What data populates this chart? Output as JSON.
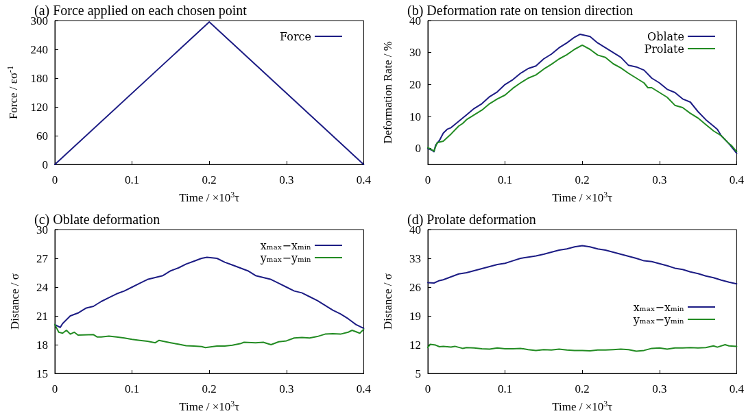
{
  "chart_data": [
    {
      "type": "line",
      "title": "(a) Force applied on each chosen point",
      "xlabel": "Time / ×10$^{3}$τ",
      "ylabel": "Force / εσ$^{-1}$",
      "xlim": [
        0,
        0.4
      ],
      "xticks": [
        0,
        0.1,
        0.2,
        0.3,
        0.4
      ],
      "ylim": [
        0,
        300
      ],
      "yticks": [
        0,
        60,
        120,
        180,
        240,
        300
      ],
      "grid": false,
      "legend": "top right",
      "marker": "none",
      "line_style": "solid",
      "series": [
        {
          "name": "Force",
          "color": "#1c1c84",
          "x": [
            0,
            0.2,
            0.4
          ],
          "values": [
            0,
            297,
            0
          ]
        }
      ]
    },
    {
      "type": "line",
      "title": "(b) Deformation rate on tension direction",
      "xlabel": "Time / ×10$^{3}$τ",
      "ylabel": "Deformation Rate / %",
      "xlim": [
        0,
        0.4
      ],
      "xticks": [
        0,
        0.1,
        0.2,
        0.3,
        0.4
      ],
      "ylim": [
        -5,
        40
      ],
      "yticks": [
        0,
        10,
        20,
        30,
        40
      ],
      "grid": false,
      "legend": "top right",
      "marker": "none",
      "line_style": "solid",
      "series": [
        {
          "name": "Oblate",
          "color": "#1c1c84",
          "x": [
            0,
            0.005,
            0.008,
            0.01,
            0.015,
            0.02,
            0.025,
            0.03,
            0.04,
            0.05,
            0.06,
            0.07,
            0.08,
            0.09,
            0.1,
            0.11,
            0.12,
            0.13,
            0.14,
            0.15,
            0.16,
            0.17,
            0.18,
            0.19,
            0.197,
            0.21,
            0.22,
            0.23,
            0.24,
            0.25,
            0.26,
            0.27,
            0.28,
            0.29,
            0.3,
            0.31,
            0.32,
            0.33,
            0.34,
            0.35,
            0.36,
            0.37,
            0.375,
            0.38,
            0.39,
            0.4
          ],
          "values": [
            0,
            -0.5,
            -1,
            1,
            2.5,
            4.8,
            6,
            6.5,
            8.5,
            10.5,
            12.5,
            14,
            16.2,
            17.7,
            20,
            21.5,
            23.5,
            25,
            25.8,
            28,
            29.5,
            31.5,
            33,
            34.8,
            35.7,
            35,
            33,
            31.5,
            30,
            28.5,
            26,
            25.5,
            24.5,
            22,
            20.5,
            18.5,
            17.5,
            15.5,
            14.5,
            11.5,
            9,
            7,
            6,
            4,
            1.5,
            -1.5
          ]
        },
        {
          "name": "Prolate",
          "color": "#228b22",
          "x": [
            0,
            0.008,
            0.012,
            0.02,
            0.03,
            0.04,
            0.045,
            0.05,
            0.06,
            0.07,
            0.08,
            0.09,
            0.1,
            0.11,
            0.12,
            0.13,
            0.14,
            0.15,
            0.16,
            0.17,
            0.18,
            0.19,
            0.2,
            0.21,
            0.22,
            0.23,
            0.24,
            0.25,
            0.26,
            0.27,
            0.28,
            0.285,
            0.29,
            0.3,
            0.31,
            0.32,
            0.33,
            0.34,
            0.35,
            0.36,
            0.37,
            0.38,
            0.39,
            0.393,
            0.4
          ],
          "values": [
            0.3,
            -0.8,
            1.8,
            2.3,
            4.5,
            7,
            7.8,
            9,
            10.5,
            12,
            14,
            15.5,
            16.7,
            18.8,
            20.5,
            22,
            23,
            24.8,
            26.3,
            28,
            29.3,
            31,
            32.3,
            31,
            29.2,
            28.5,
            26.5,
            25.2,
            23.5,
            22,
            20.5,
            19,
            19,
            17.5,
            16,
            13.5,
            12.8,
            11,
            9.5,
            7.5,
            5.5,
            4,
            1.5,
            1,
            -1
          ]
        }
      ]
    },
    {
      "type": "line",
      "title": "(c) Oblate deformation",
      "xlabel": "Time / ×10$^{3}$τ",
      "ylabel": "Distance / σ",
      "xlim": [
        0,
        0.4
      ],
      "xticks": [
        0,
        0.1,
        0.2,
        0.3,
        0.4
      ],
      "ylim": [
        15,
        30
      ],
      "yticks": [
        15,
        18,
        21,
        24,
        27,
        30
      ],
      "grid": false,
      "legend": "top right",
      "marker": "none",
      "line_style": "solid",
      "series": [
        {
          "name": "xₘₐₓ−xₘᵢₙ",
          "color": "#1c1c84",
          "x": [
            0,
            0.007,
            0.01,
            0.02,
            0.03,
            0.04,
            0.05,
            0.06,
            0.07,
            0.08,
            0.09,
            0.1,
            0.11,
            0.12,
            0.13,
            0.14,
            0.15,
            0.16,
            0.17,
            0.18,
            0.19,
            0.197,
            0.21,
            0.22,
            0.23,
            0.24,
            0.25,
            0.26,
            0.27,
            0.28,
            0.29,
            0.3,
            0.31,
            0.32,
            0.33,
            0.34,
            0.35,
            0.36,
            0.37,
            0.38,
            0.39,
            0.4
          ],
          "values": [
            20.1,
            19.8,
            20.2,
            21,
            21.3,
            21.8,
            22,
            22.5,
            22.9,
            23.3,
            23.6,
            24,
            24.4,
            24.8,
            25,
            25.2,
            25.7,
            26,
            26.4,
            26.7,
            27,
            27.1,
            27,
            26.6,
            26.3,
            26,
            25.7,
            25.2,
            25,
            24.8,
            24.4,
            24,
            23.6,
            23.4,
            23,
            22.6,
            22.1,
            21.6,
            21.2,
            20.7,
            20.1,
            19.7
          ]
        },
        {
          "name": "yₘₐₓ−yₘᵢₙ",
          "color": "#228b22",
          "x": [
            0,
            0.005,
            0.01,
            0.015,
            0.02,
            0.025,
            0.03,
            0.05,
            0.055,
            0.06,
            0.07,
            0.08,
            0.09,
            0.1,
            0.11,
            0.12,
            0.13,
            0.135,
            0.15,
            0.16,
            0.17,
            0.18,
            0.19,
            0.195,
            0.21,
            0.22,
            0.23,
            0.24,
            0.245,
            0.26,
            0.27,
            0.28,
            0.29,
            0.3,
            0.31,
            0.32,
            0.33,
            0.34,
            0.35,
            0.36,
            0.37,
            0.38,
            0.385,
            0.395,
            0.4
          ],
          "values": [
            20.1,
            19.3,
            19.2,
            19.5,
            19.1,
            19.3,
            19,
            19.05,
            18.8,
            18.8,
            18.9,
            18.8,
            18.7,
            18.55,
            18.45,
            18.35,
            18.2,
            18.45,
            18.2,
            18.05,
            17.9,
            17.85,
            17.8,
            17.7,
            17.85,
            17.85,
            17.95,
            18.1,
            18.25,
            18.2,
            18.25,
            18,
            18.3,
            18.4,
            18.7,
            18.75,
            18.7,
            18.85,
            19.1,
            19.15,
            19.1,
            19.3,
            19.5,
            19.2,
            19.6
          ]
        }
      ]
    },
    {
      "type": "line",
      "title": "(d) Prolate deformation",
      "xlabel": "Time / ×10$^{3}$τ",
      "ylabel": "Distance / σ",
      "xlim": [
        0,
        0.4
      ],
      "xticks": [
        0,
        0.1,
        0.2,
        0.3,
        0.4
      ],
      "ylim": [
        5,
        40
      ],
      "yticks": [
        5,
        12,
        19,
        26,
        33,
        40
      ],
      "grid": false,
      "legend": "right",
      "marker": "none",
      "line_style": "solid",
      "series": [
        {
          "name": "xₘₐₓ−xₘᵢₙ",
          "color": "#1c1c84",
          "x": [
            0,
            0.008,
            0.015,
            0.02,
            0.03,
            0.04,
            0.05,
            0.06,
            0.07,
            0.08,
            0.09,
            0.1,
            0.11,
            0.12,
            0.13,
            0.14,
            0.15,
            0.16,
            0.17,
            0.18,
            0.19,
            0.2,
            0.21,
            0.22,
            0.23,
            0.24,
            0.25,
            0.26,
            0.27,
            0.28,
            0.29,
            0.3,
            0.31,
            0.32,
            0.33,
            0.34,
            0.35,
            0.36,
            0.37,
            0.38,
            0.39,
            0.4
          ],
          "values": [
            27.1,
            27,
            27.6,
            27.8,
            28.5,
            29.2,
            29.5,
            30,
            30.5,
            31,
            31.5,
            31.8,
            32.4,
            33,
            33.3,
            33.6,
            34,
            34.5,
            35,
            35.3,
            35.8,
            36.1,
            35.8,
            35.3,
            35,
            34.5,
            34,
            33.5,
            33,
            32.4,
            32.2,
            31.7,
            31.2,
            30.6,
            30.3,
            29.7,
            29.3,
            28.7,
            28.3,
            27.7,
            27.2,
            26.8
          ]
        },
        {
          "name": "yₘₐₓ−yₘᵢₙ",
          "color": "#228b22",
          "x": [
            0,
            0.003,
            0.01,
            0.015,
            0.02,
            0.03,
            0.035,
            0.045,
            0.05,
            0.06,
            0.07,
            0.08,
            0.09,
            0.1,
            0.11,
            0.12,
            0.13,
            0.14,
            0.15,
            0.16,
            0.17,
            0.18,
            0.19,
            0.2,
            0.21,
            0.22,
            0.23,
            0.24,
            0.25,
            0.26,
            0.27,
            0.28,
            0.29,
            0.3,
            0.31,
            0.32,
            0.33,
            0.34,
            0.35,
            0.36,
            0.37,
            0.375,
            0.385,
            0.39,
            0.4
          ],
          "values": [
            11.3,
            12.1,
            11.9,
            11.5,
            11.6,
            11.4,
            11.6,
            11.1,
            11.3,
            11.2,
            11,
            10.9,
            11.2,
            11,
            11,
            11.1,
            10.8,
            10.6,
            10.8,
            10.7,
            10.9,
            10.7,
            10.6,
            10.6,
            10.5,
            10.7,
            10.7,
            10.8,
            10.9,
            10.8,
            10.4,
            10.6,
            11.1,
            11.2,
            10.9,
            11.2,
            11.2,
            11.3,
            11.2,
            11.3,
            11.7,
            11.4,
            12,
            11.7,
            11.6
          ]
        }
      ]
    }
  ]
}
